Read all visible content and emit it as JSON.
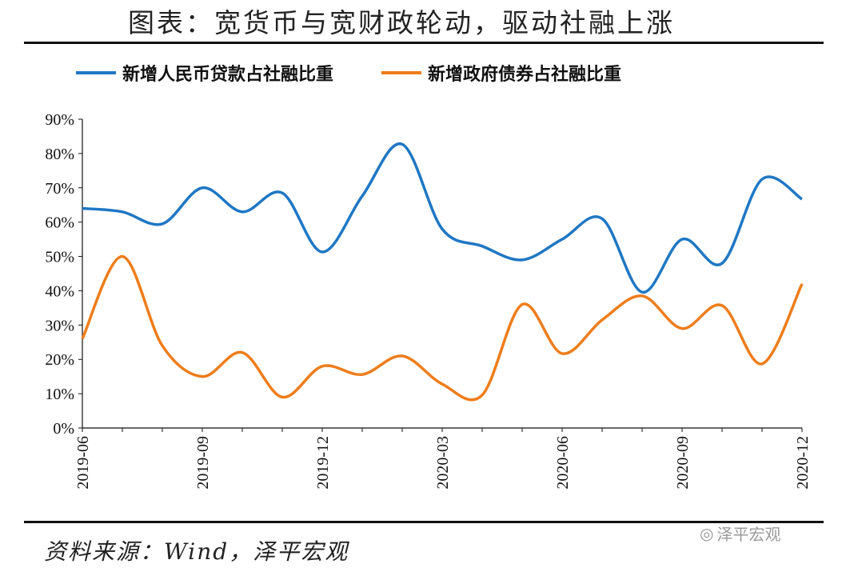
{
  "title": "图表：宽货币与宽财政轮动，驱动社融上涨",
  "source": "资料来源：Wind，泽平宏观",
  "watermark": "泽平宏观",
  "chart_data": {
    "type": "line",
    "title": "图表：宽货币与宽财政轮动，驱动社融上涨",
    "xlabel": "",
    "ylabel": "",
    "ylim": [
      0,
      90
    ],
    "yticks": [
      "0%",
      "10%",
      "20%",
      "30%",
      "40%",
      "50%",
      "60%",
      "70%",
      "80%",
      "90%"
    ],
    "x": [
      "2019-06",
      "2019-07",
      "2019-08",
      "2019-09",
      "2019-10",
      "2019-11",
      "2019-12",
      "2020-01",
      "2020-02",
      "2020-03",
      "2020-04",
      "2020-05",
      "2020-06",
      "2020-07",
      "2020-08",
      "2020-09",
      "2020-10",
      "2020-11",
      "2020-12"
    ],
    "xticks": [
      "2019-06",
      "2019-09",
      "2019-12",
      "2020-03",
      "2020-06",
      "2020-09",
      "2020-12"
    ],
    "legend_position": "top",
    "series": [
      {
        "name": "新增人民币贷款占社融比重",
        "color": "#1f77c4",
        "values": [
          64,
          63,
          59.5,
          70,
          63,
          68.5,
          51.3,
          67.6,
          82.7,
          58,
          53,
          49,
          55,
          61,
          39.6,
          55,
          48,
          72.5,
          66.7
        ]
      },
      {
        "name": "新增政府债券占社融比重",
        "color": "#ee7d1b",
        "values": [
          26,
          50,
          24,
          15,
          22,
          9,
          18,
          15.6,
          21,
          12.8,
          9.6,
          36,
          21.7,
          31.5,
          38.5,
          29,
          35.7,
          18.7,
          42
        ]
      }
    ]
  }
}
